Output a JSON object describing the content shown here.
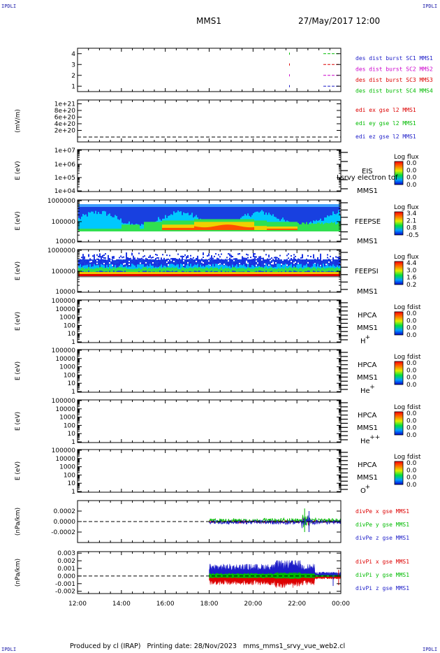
{
  "corners": {
    "tl": "IPDLI",
    "tr": "IPDLI",
    "bl": "IPDLI",
    "br": "IPDLI"
  },
  "header": {
    "mission": "MMS1",
    "datetime": "27/May/2017 12:00"
  },
  "footer": "Produced by cl (IRAP)   Printing date: 28/Nov/2023   mms_mms1_srvy_vue_web2.cl",
  "x_axis": {
    "ticks": [
      "12:00",
      "14:00",
      "16:00",
      "18:00",
      "20:00",
      "22:00",
      "00:00"
    ]
  },
  "colors": {
    "c1": "#00bb00",
    "c2": "#dd0000",
    "c3": "#cc00cc",
    "c4": "#0000cc"
  },
  "chart_data": [
    {
      "type": "scatter",
      "ylim": [
        0.5,
        4.5
      ],
      "yticks": [
        "1",
        "2",
        "3",
        "4"
      ],
      "legend": [
        {
          "label": "des dist burst SC1 MMS1",
          "color": "#1c1cc8"
        },
        {
          "label": "des dist burst SC2 MMS2",
          "color": "#cc00cc"
        },
        {
          "label": "des dist burst SC3 MMS3",
          "color": "#dd0000"
        },
        {
          "label": "des dist burst SC4 MMS4",
          "color": "#00bb00"
        }
      ]
    },
    {
      "type": "line",
      "ylabel": "(mV/m)",
      "yticks": [
        "0",
        "2e+20",
        "4e+20",
        "6e+20",
        "8e+20",
        "1e+21"
      ],
      "legend": [
        {
          "label": "edi ex gse l2 MMS1",
          "color": "#dd0000"
        },
        {
          "label": "edi ey gse l2 MMS1",
          "color": "#00bb00"
        },
        {
          "label": "edi ez gse l2 MMS1",
          "color": "#1c1cc8"
        }
      ]
    },
    {
      "type": "heatmap",
      "ylabel": "E (eV)",
      "yticks": [
        "1e+04",
        "1e+05",
        "1e+06",
        "1e+07"
      ],
      "instrument": "EIS",
      "subtitle": "Lsrvy electron tof",
      "spacecraft": "MMS1",
      "cbar_title": "Log flux",
      "cbar_ticks": [
        "0.0",
        "0.0",
        "0.0",
        "0.0"
      ]
    },
    {
      "type": "heatmap",
      "ylabel": "E (eV)",
      "yticks": [
        "10000",
        "100000",
        "1000000"
      ],
      "instrument": "FEEPSE",
      "spacecraft": "MMS1",
      "cbar_title": "Log flux",
      "cbar_ticks": [
        "3.4",
        "2.1",
        "0.8",
        "-0.5"
      ]
    },
    {
      "type": "heatmap",
      "ylabel": "E (eV)",
      "yticks": [
        "10000",
        "100000",
        "1000000"
      ],
      "instrument": "FEEPSI",
      "spacecraft": "MMS1",
      "cbar_title": "Log flux",
      "cbar_ticks": [
        "4.4",
        "3.0",
        "1.6",
        "0.2"
      ]
    },
    {
      "type": "heatmap",
      "ylabel": "E (eV)",
      "yticks": [
        "1",
        "10",
        "100",
        "1000",
        "10000",
        "100000"
      ],
      "instrument": "HPCA",
      "spacecraft": "MMS1",
      "species": "H",
      "species_sup": "+",
      "cbar_title": "Log fdist",
      "cbar_ticks": [
        "0.0",
        "0.0",
        "0.0",
        "0.0"
      ]
    },
    {
      "type": "heatmap",
      "ylabel": "E (eV)",
      "yticks": [
        "1",
        "10",
        "100",
        "1000",
        "10000",
        "100000"
      ],
      "instrument": "HPCA",
      "spacecraft": "MMS1",
      "species": "He",
      "species_sup": "+",
      "cbar_title": "Log fdist",
      "cbar_ticks": [
        "0.0",
        "0.0",
        "0.0",
        "0.0"
      ]
    },
    {
      "type": "heatmap",
      "ylabel": "E (eV)",
      "yticks": [
        "1",
        "10",
        "100",
        "1000",
        "10000",
        "100000"
      ],
      "instrument": "HPCA",
      "spacecraft": "MMS1",
      "species": "He",
      "species_sup": "++",
      "cbar_title": "Log fdist",
      "cbar_ticks": [
        "0.0",
        "0.0",
        "0.0",
        "0.0"
      ]
    },
    {
      "type": "heatmap",
      "ylabel": "E (eV)",
      "yticks": [
        "1",
        "10",
        "100",
        "1000",
        "10000",
        "100000"
      ],
      "instrument": "HPCA",
      "spacecraft": "MMS1",
      "species": "O",
      "species_sup": "+",
      "cbar_title": "Log fdist",
      "cbar_ticks": [
        "0.0",
        "0.0",
        "0.0",
        "0.0"
      ]
    },
    {
      "type": "line",
      "ylabel": "(nPa/km)",
      "ylim": [
        -0.0004,
        0.0004
      ],
      "yticks": [
        "-0.0002",
        "0.0000",
        "0.0002"
      ],
      "legend": [
        {
          "label": "divPe x gse MMS1",
          "color": "#dd0000"
        },
        {
          "label": "divPe y gse MMS1",
          "color": "#00bb00"
        },
        {
          "label": "divPe z gse MMS1",
          "color": "#1c1cc8"
        }
      ]
    },
    {
      "type": "line",
      "ylabel": "(nPa/km)",
      "ylim": [
        -0.0023,
        0.0032
      ],
      "yticks": [
        "-0.002",
        "-0.001",
        "0.000",
        "0.001",
        "0.002",
        "0.003"
      ],
      "legend": [
        {
          "label": "divPi x gse MMS1",
          "color": "#dd0000"
        },
        {
          "label": "divPi y gse MMS1",
          "color": "#00bb00"
        },
        {
          "label": "divPi z gse MMS1",
          "color": "#1c1cc8"
        }
      ]
    }
  ]
}
